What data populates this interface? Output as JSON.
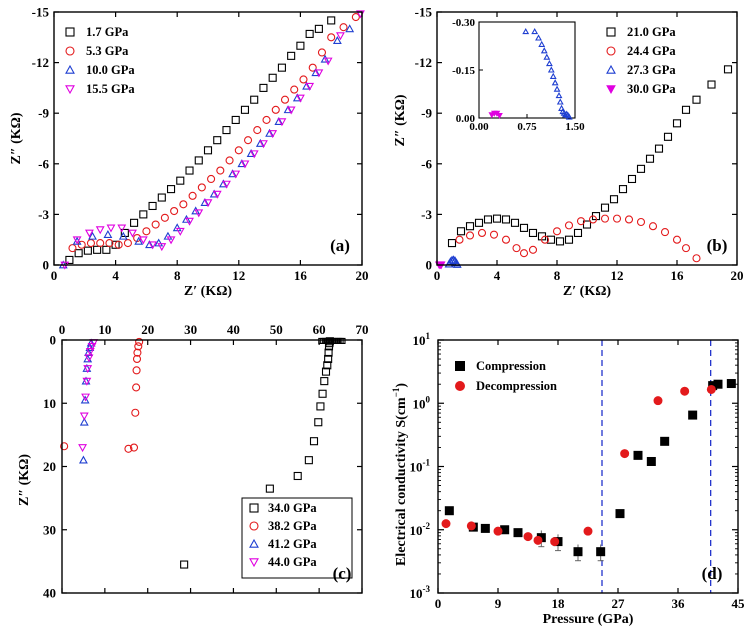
{
  "chart_data": [
    {
      "panel": "(a)",
      "type": "scatter",
      "xlabel": "Z′ (KΩ)",
      "ylabel": "Z″ (KΩ)",
      "xlim": [
        0,
        20
      ],
      "ylim": [
        0,
        -15
      ],
      "xticks": [
        "0",
        "4",
        "8",
        "12",
        "16",
        "20"
      ],
      "yticks": [
        "0",
        "-3",
        "-6",
        "-9",
        "-12",
        "-15"
      ],
      "legend": "top-left",
      "series": [
        {
          "name": "1.7 GPa",
          "marker": "square",
          "color": "#000000",
          "x": [
            1.0,
            1.6,
            2.2,
            2.8,
            3.4,
            4.0,
            4.6,
            5.2,
            5.8,
            6.4,
            7.0,
            7.6,
            8.2,
            8.8,
            9.4,
            10.0,
            10.6,
            11.2,
            11.8,
            12.4,
            13.0,
            13.6,
            14.2,
            14.8,
            15.4,
            16.0,
            16.6,
            17.2,
            18.0
          ],
          "y": [
            -0.3,
            -0.7,
            -0.85,
            -0.9,
            -0.9,
            -1.2,
            -1.9,
            -2.5,
            -3.0,
            -3.5,
            -4.0,
            -4.5,
            -5.0,
            -5.6,
            -6.2,
            -6.8,
            -7.4,
            -8.0,
            -8.6,
            -9.2,
            -9.8,
            -10.5,
            -11.1,
            -11.7,
            -12.4,
            -13.0,
            -13.7,
            -14.0,
            -14.5
          ]
        },
        {
          "name": "5.3 GPa",
          "marker": "circle",
          "color": "#e31a1c",
          "x": [
            1.2,
            1.8,
            2.4,
            3.0,
            3.6,
            4.2,
            4.8,
            5.4,
            6.0,
            6.6,
            7.2,
            7.8,
            8.4,
            9.0,
            9.6,
            10.2,
            10.8,
            11.4,
            12.0,
            12.6,
            13.2,
            13.8,
            14.4,
            15.0,
            15.6,
            16.2,
            16.8,
            17.4,
            18.0,
            18.8,
            19.6
          ],
          "y": [
            -1.0,
            -1.2,
            -1.3,
            -1.3,
            -1.3,
            -1.2,
            -1.3,
            -1.6,
            -2.0,
            -2.4,
            -2.8,
            -3.2,
            -3.6,
            -4.1,
            -4.6,
            -5.1,
            -5.6,
            -6.2,
            -6.8,
            -7.4,
            -8.0,
            -8.6,
            -9.2,
            -9.8,
            -10.4,
            -11.0,
            -11.7,
            -12.6,
            -13.5,
            -14.1,
            -14.7
          ]
        },
        {
          "name": "10.0 GPa",
          "marker": "triangle-up",
          "color": "#1f3fd1",
          "x": [
            0.6,
            1.5,
            2.5,
            3.5,
            4.5,
            5.5,
            6.2,
            6.8,
            7.4,
            8.0,
            8.6,
            9.2,
            9.8,
            10.4,
            11.0,
            11.6,
            12.2,
            12.8,
            13.4,
            14.0,
            14.6,
            15.2,
            15.8,
            16.4,
            17.0,
            17.6,
            18.4,
            19.2
          ],
          "y": [
            0.0,
            -1.4,
            -1.7,
            -1.8,
            -1.7,
            -1.4,
            -1.2,
            -1.3,
            -1.7,
            -2.2,
            -2.7,
            -3.2,
            -3.7,
            -4.2,
            -4.8,
            -5.4,
            -6.0,
            -6.6,
            -7.2,
            -7.8,
            -8.5,
            -9.2,
            -9.9,
            -10.6,
            -11.4,
            -12.2,
            -13.3,
            -14.0
          ]
        },
        {
          "name": "15.5 GPa",
          "marker": "triangle-down",
          "color": "#e000e0",
          "x": [
            0.7,
            1.5,
            2.3,
            3.0,
            3.7,
            4.4,
            5.1,
            5.8,
            6.4,
            7.0,
            7.6,
            8.2,
            8.8,
            9.4,
            10.0,
            10.6,
            11.2,
            11.8,
            12.4,
            13.0,
            13.6,
            14.2,
            14.8,
            15.4,
            16.0,
            16.6,
            17.2,
            17.8,
            18.6,
            19.9
          ],
          "y": [
            0.0,
            -1.5,
            -1.9,
            -2.1,
            -2.2,
            -2.2,
            -1.9,
            -1.5,
            -1.2,
            -1.1,
            -1.5,
            -2.0,
            -2.6,
            -3.1,
            -3.7,
            -4.2,
            -4.8,
            -5.4,
            -6.0,
            -6.6,
            -7.2,
            -7.8,
            -8.5,
            -9.2,
            -9.9,
            -10.6,
            -11.4,
            -12.1,
            -13.6,
            -14.9
          ]
        }
      ]
    },
    {
      "panel": "(b)",
      "type": "scatter",
      "xlabel": "Z′ (KΩ)",
      "ylabel": "Z″ (KΩ)",
      "xlim": [
        0,
        20
      ],
      "ylim": [
        0,
        -15
      ],
      "xticks": [
        "0",
        "4",
        "8",
        "12",
        "16",
        "20"
      ],
      "yticks": [
        "0",
        "-3",
        "-6",
        "-9",
        "-12",
        "-15"
      ],
      "legend": "top-right",
      "series": [
        {
          "name": "21.0 GPa",
          "marker": "square",
          "color": "#000000",
          "x": [
            1.0,
            1.6,
            2.2,
            2.8,
            3.4,
            4.0,
            4.6,
            5.2,
            5.8,
            6.4,
            7.0,
            7.6,
            8.2,
            8.8,
            9.4,
            10.0,
            10.6,
            11.2,
            11.8,
            12.4,
            13.0,
            13.6,
            14.2,
            14.8,
            15.4,
            16.0,
            16.6,
            17.3,
            18.3,
            19.4
          ],
          "y": [
            -1.3,
            -2.0,
            -2.3,
            -2.5,
            -2.7,
            -2.75,
            -2.7,
            -2.5,
            -2.2,
            -1.9,
            -1.7,
            -1.5,
            -1.4,
            -1.5,
            -1.9,
            -2.4,
            -2.9,
            -3.4,
            -3.9,
            -4.5,
            -5.1,
            -5.7,
            -6.3,
            -6.9,
            -7.6,
            -8.4,
            -9.2,
            -9.8,
            -10.7,
            -11.6
          ]
        },
        {
          "name": "24.4 GPa",
          "marker": "circle",
          "color": "#e31a1c",
          "x": [
            1.5,
            2.2,
            3.0,
            3.8,
            4.6,
            5.3,
            5.8,
            6.4,
            7.2,
            8.0,
            8.8,
            9.6,
            10.4,
            11.2,
            12.0,
            12.8,
            13.6,
            14.4,
            15.2,
            16.0,
            16.6,
            17.3
          ],
          "y": [
            -1.5,
            -1.75,
            -1.9,
            -1.8,
            -1.5,
            -1.0,
            -0.7,
            -0.9,
            -1.5,
            -2.0,
            -2.35,
            -2.6,
            -2.7,
            -2.75,
            -2.75,
            -2.7,
            -2.55,
            -2.3,
            -1.95,
            -1.5,
            -1.0,
            -0.4
          ]
        },
        {
          "name": "27.3 GPa",
          "marker": "triangle-up",
          "color": "#1f3fd1",
          "x": [
            0.8,
            0.9,
            1.0,
            1.1,
            1.2,
            1.3,
            1.35
          ],
          "y": [
            -0.05,
            -0.2,
            -0.28,
            -0.3,
            -0.25,
            -0.12,
            -0.03
          ]
        },
        {
          "name": "30.0 GPa",
          "marker": "triangle-down-filled",
          "color": "#e000e0",
          "x": [
            0.15,
            0.22,
            0.28
          ],
          "y": [
            -0.01,
            -0.02,
            -0.01
          ]
        }
      ],
      "inset": {
        "xlim": [
          0,
          1.5
        ],
        "ylim": [
          0,
          -0.3
        ],
        "xticks": [
          "0.00",
          "0.75",
          "1.50"
        ],
        "yticks": [
          "0.00",
          "-0.15",
          "-0.30"
        ],
        "series": [
          {
            "name": "27.3 GPa",
            "marker": "triangle-up",
            "color": "#1f3fd1",
            "x": [
              0.73,
              0.87,
              0.93,
              0.98,
              1.02,
              1.06,
              1.1,
              1.13,
              1.16,
              1.19,
              1.22,
              1.25,
              1.27,
              1.29,
              1.31,
              1.33,
              1.35,
              1.37,
              1.39,
              1.41
            ],
            "y": [
              -0.27,
              -0.27,
              -0.25,
              -0.23,
              -0.21,
              -0.19,
              -0.17,
              -0.15,
              -0.13,
              -0.11,
              -0.09,
              -0.07,
              -0.05,
              -0.03,
              -0.02,
              -0.015,
              -0.01,
              -0.012,
              -0.008,
              -0.003
            ]
          },
          {
            "name": "30.0 GPa",
            "marker": "triangle-down-filled",
            "color": "#e000e0",
            "x": [
              0.2,
              0.24,
              0.28,
              0.32
            ],
            "y": [
              -0.01,
              -0.015,
              -0.015,
              -0.008
            ]
          }
        ]
      }
    },
    {
      "panel": "(c)",
      "type": "scatter",
      "xlabel": "",
      "ylabel": "Z″ (KΩ)",
      "xlim": [
        0,
        70
      ],
      "ylim": [
        0,
        40
      ],
      "xticks": [
        "0",
        "10",
        "20",
        "30",
        "40",
        "50",
        "60",
        "70"
      ],
      "yticks": [
        "0",
        "10",
        "20",
        "30",
        "40"
      ],
      "legend": "bottom-right",
      "series": [
        {
          "name": "34.0 GPa",
          "marker": "square",
          "color": "#000000",
          "x": [
            62.5,
            62.4,
            62.3,
            62.2,
            62.1,
            61.9,
            61.6,
            61.2,
            60.8,
            60.3,
            59.8,
            58.8,
            57.6,
            55.0,
            48.5,
            28.5
          ],
          "y": [
            0.2,
            0.5,
            1.0,
            2.0,
            3.0,
            4.0,
            5.0,
            6.5,
            8.5,
            10.5,
            13.0,
            16.0,
            19.0,
            21.5,
            23.5,
            35.5
          ]
        },
        {
          "name": "38.2 GPa",
          "marker": "circle",
          "color": "#e31a1c",
          "x": [
            18.0,
            17.8,
            17.6,
            17.5,
            17.4,
            17.3,
            17.1,
            16.8,
            15.5,
            0.5
          ],
          "y": [
            0.3,
            1.0,
            2.0,
            3.0,
            4.8,
            7.5,
            11.5,
            17.0,
            17.2,
            16.8
          ]
        },
        {
          "name": "41.2 GPa",
          "marker": "triangle-up",
          "color": "#1f3fd1",
          "x": [
            6.8,
            6.5,
            6.2,
            6.0,
            5.8,
            5.6,
            5.4,
            5.2,
            5.0
          ],
          "y": [
            0.5,
            1.2,
            2.0,
            3.0,
            4.5,
            6.5,
            9.5,
            13.0,
            19.0
          ]
        },
        {
          "name": "44.0 GPa",
          "marker": "triangle-down",
          "color": "#e000e0",
          "x": [
            7.4,
            7.0,
            6.6,
            6.3,
            6.0,
            5.8,
            5.5,
            5.2,
            4.8
          ],
          "y": [
            0.4,
            1.0,
            1.8,
            2.8,
            4.5,
            6.5,
            9.0,
            12.0,
            17.0
          ]
        }
      ]
    },
    {
      "panel": "(d)",
      "type": "scatter",
      "xlabel": "Pressure (GPa)",
      "ylabel": "Electrical conductivity S(cm⁻¹)",
      "ylabel_text": "Electrical conductivity S(cm",
      "ylabel_sup": "−1",
      "ylabel_end": ")",
      "xlim": [
        0,
        45
      ],
      "ylim": [
        0.001,
        10
      ],
      "yscale": "log",
      "xticks": [
        "0",
        "9",
        "18",
        "27",
        "36",
        "45"
      ],
      "yticks": [
        {
          "b": "10",
          "e": "1"
        },
        {
          "b": "10",
          "e": "0"
        },
        {
          "b": "10",
          "e": "-1"
        },
        {
          "b": "10",
          "e": "-2"
        },
        {
          "b": "10",
          "e": "-3"
        }
      ],
      "vlines": [
        24.6,
        40.9
      ],
      "legend": "top-left",
      "series": [
        {
          "name": "Compression",
          "marker": "square-filled",
          "color": "#000000",
          "x": [
            1.7,
            5.3,
            7.1,
            10.0,
            12.0,
            15.5,
            18.0,
            21.0,
            24.4,
            27.3,
            30.0,
            32.0,
            34.0,
            38.2,
            41.2,
            42.0,
            44.0
          ],
          "y": [
            0.02,
            0.011,
            0.0105,
            0.01,
            0.009,
            0.0075,
            0.0065,
            0.0045,
            0.0045,
            0.018,
            0.15,
            0.12,
            0.25,
            0.65,
            1.9,
            2.0,
            2.05
          ]
        },
        {
          "name": "Decompression",
          "marker": "circle-filled",
          "color": "#e31a1c",
          "x": [
            1.2,
            5.0,
            9.0,
            13.5,
            15.0,
            17.5,
            22.5,
            28.0,
            33.0,
            37.0,
            41.0
          ],
          "y": [
            0.0125,
            0.0115,
            0.0095,
            0.0078,
            0.0068,
            0.0065,
            0.0095,
            0.16,
            1.1,
            1.55,
            1.65
          ]
        }
      ]
    }
  ],
  "panel_labels": [
    "(a)",
    "(b)",
    "(c)",
    "(d)"
  ]
}
